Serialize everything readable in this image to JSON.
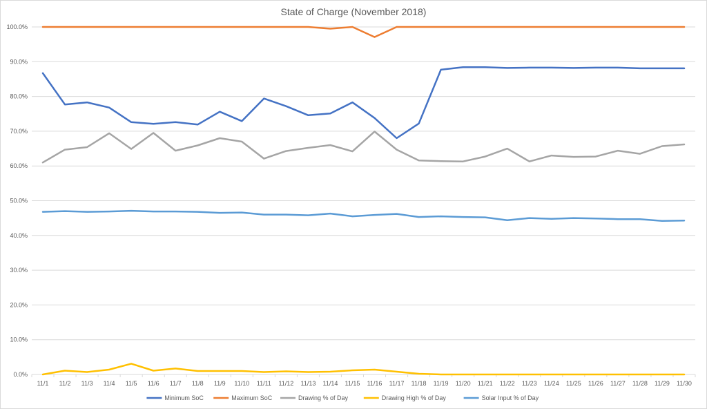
{
  "chart_data": {
    "type": "line",
    "title": "State of Charge (November 2018)",
    "xlabel": "",
    "ylabel": "",
    "ylim": [
      0,
      100
    ],
    "y_ticks": [
      "0.0%",
      "10.0%",
      "20.0%",
      "30.0%",
      "40.0%",
      "50.0%",
      "60.0%",
      "70.0%",
      "80.0%",
      "90.0%",
      "100.0%"
    ],
    "grid": true,
    "legend_position": "bottom",
    "categories": [
      "11/1",
      "11/2",
      "11/3",
      "11/4",
      "11/5",
      "11/6",
      "11/7",
      "11/8",
      "11/9",
      "11/10",
      "11/11",
      "11/12",
      "11/13",
      "11/14",
      "11/15",
      "11/16",
      "11/17",
      "11/18",
      "11/19",
      "11/20",
      "11/21",
      "11/22",
      "11/23",
      "11/24",
      "11/25",
      "11/26",
      "11/27",
      "11/28",
      "11/29",
      "11/30"
    ],
    "series": [
      {
        "name": "Minimum SoC",
        "color": "#4472c4",
        "values": [
          86.7,
          77.7,
          78.3,
          76.8,
          72.6,
          72.1,
          72.6,
          71.9,
          75.6,
          72.9,
          79.4,
          77.2,
          74.6,
          75.1,
          78.3,
          73.8,
          68.0,
          72.2,
          87.7,
          88.4,
          88.4,
          88.2,
          88.3,
          88.3,
          88.2,
          88.3,
          88.3,
          88.1,
          88.1,
          88.1
        ]
      },
      {
        "name": "Maximum SoC",
        "color": "#ed7d31",
        "values": [
          100,
          100,
          100,
          100,
          100,
          100,
          100,
          100,
          100,
          100,
          100,
          100,
          100,
          99.5,
          100,
          97.1,
          100,
          100,
          100,
          100,
          100,
          100,
          100,
          100,
          100,
          100,
          100,
          100,
          100,
          100
        ]
      },
      {
        "name": "Drawing % of Day",
        "color": "#a5a5a5",
        "values": [
          61.0,
          64.7,
          65.4,
          69.4,
          64.9,
          69.5,
          64.4,
          65.9,
          68.0,
          67.0,
          62.1,
          64.3,
          65.2,
          66.0,
          64.2,
          69.9,
          64.7,
          61.6,
          61.4,
          61.3,
          62.7,
          65.0,
          61.3,
          63.0,
          62.6,
          62.7,
          64.4,
          63.5,
          65.7,
          66.2
        ]
      },
      {
        "name": "Drawing High % of Day",
        "color": "#ffc000",
        "values": [
          0.0,
          1.1,
          0.7,
          1.4,
          3.1,
          1.1,
          1.7,
          1.0,
          1.0,
          1.0,
          0.7,
          0.9,
          0.7,
          0.8,
          1.2,
          1.4,
          0.8,
          0.2,
          0.0,
          0.0,
          0.0,
          0.0,
          0.0,
          0.0,
          0.0,
          0.0,
          0.0,
          0.0,
          0.0,
          0.0
        ]
      },
      {
        "name": "Solar Input % of Day",
        "color": "#5b9bd5",
        "values": [
          46.8,
          47.0,
          46.8,
          46.9,
          47.1,
          46.9,
          46.9,
          46.8,
          46.5,
          46.6,
          46.0,
          46.0,
          45.8,
          46.3,
          45.5,
          45.9,
          46.2,
          45.3,
          45.5,
          45.3,
          45.2,
          44.4,
          45.0,
          44.8,
          45.0,
          44.9,
          44.7,
          44.7,
          44.2,
          44.3
        ]
      }
    ]
  }
}
